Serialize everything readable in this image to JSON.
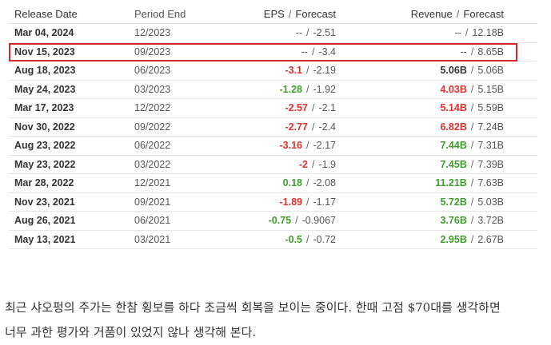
{
  "table": {
    "headers": {
      "release_date": "Release Date",
      "period_end": "Period End",
      "eps": "EPS",
      "eps_forecast": "Forecast",
      "revenue": "Revenue",
      "revenue_forecast": "Forecast",
      "separator": "/"
    },
    "rows": [
      {
        "date": "Mar 04, 2024",
        "period": "12/2023",
        "eps": "--",
        "eps_state": "muted",
        "eps_forecast": "-2.51",
        "revenue": "--",
        "rev_state": "muted",
        "revenue_forecast": "12.18B"
      },
      {
        "date": "Nov 15, 2023",
        "period": "09/2023",
        "eps": "--",
        "eps_state": "muted",
        "eps_forecast": "-3.4",
        "revenue": "--",
        "rev_state": "muted",
        "revenue_forecast": "8.65B"
      },
      {
        "date": "Aug 18, 2023",
        "period": "06/2023",
        "eps": "-3.1",
        "eps_state": "neg",
        "eps_forecast": "-2.19",
        "revenue": "5.06B",
        "rev_state": "plain",
        "revenue_forecast": "5.06B"
      },
      {
        "date": "May 24, 2023",
        "period": "03/2023",
        "eps": "-1.28",
        "eps_state": "pos",
        "eps_forecast": "-1.92",
        "revenue": "4.03B",
        "rev_state": "neg",
        "revenue_forecast": "5.15B"
      },
      {
        "date": "Mar 17, 2023",
        "period": "12/2022",
        "eps": "-2.57",
        "eps_state": "neg",
        "eps_forecast": "-2.1",
        "revenue": "5.14B",
        "rev_state": "neg",
        "revenue_forecast": "5.59B"
      },
      {
        "date": "Nov 30, 2022",
        "period": "09/2022",
        "eps": "-2.77",
        "eps_state": "neg",
        "eps_forecast": "-2.4",
        "revenue": "6.82B",
        "rev_state": "neg",
        "revenue_forecast": "7.24B"
      },
      {
        "date": "Aug 23, 2022",
        "period": "06/2022",
        "eps": "-3.16",
        "eps_state": "neg",
        "eps_forecast": "-2.17",
        "revenue": "7.44B",
        "rev_state": "pos",
        "revenue_forecast": "7.31B"
      },
      {
        "date": "May 23, 2022",
        "period": "03/2022",
        "eps": "-2",
        "eps_state": "neg",
        "eps_forecast": "-1.9",
        "revenue": "7.45B",
        "rev_state": "pos",
        "revenue_forecast": "7.39B"
      },
      {
        "date": "Mar 28, 2022",
        "period": "12/2021",
        "eps": "0.18",
        "eps_state": "pos",
        "eps_forecast": "-2.08",
        "revenue": "11.21B",
        "rev_state": "pos",
        "revenue_forecast": "7.63B"
      },
      {
        "date": "Nov 23, 2021",
        "period": "09/2021",
        "eps": "-1.89",
        "eps_state": "neg",
        "eps_forecast": "-1.17",
        "revenue": "5.72B",
        "rev_state": "pos",
        "revenue_forecast": "5.03B"
      },
      {
        "date": "Aug 26, 2021",
        "period": "06/2021",
        "eps": "-0.75",
        "eps_state": "pos",
        "eps_forecast": "-0.9067",
        "revenue": "3.76B",
        "rev_state": "pos",
        "revenue_forecast": "3.72B"
      },
      {
        "date": "May 13, 2021",
        "period": "03/2021",
        "eps": "-0.5",
        "eps_state": "pos",
        "eps_forecast": "-0.72",
        "revenue": "2.95B",
        "rev_state": "pos",
        "revenue_forecast": "2.67B"
      }
    ],
    "highlighted_row_index": 1,
    "colors": {
      "negative": "#e0312d",
      "positive": "#3f9e2b",
      "highlight_border": "#d7262b"
    }
  },
  "paragraph": {
    "line1": "최근 샤오펑의 주가는 한참 횡보를 하다 조금씩 회복을 보이는 중이다. 한때 고점 $70대를 생각하면",
    "line2": "너무 과한 평가와 거품이 있었지 않나 생각해 본다."
  }
}
